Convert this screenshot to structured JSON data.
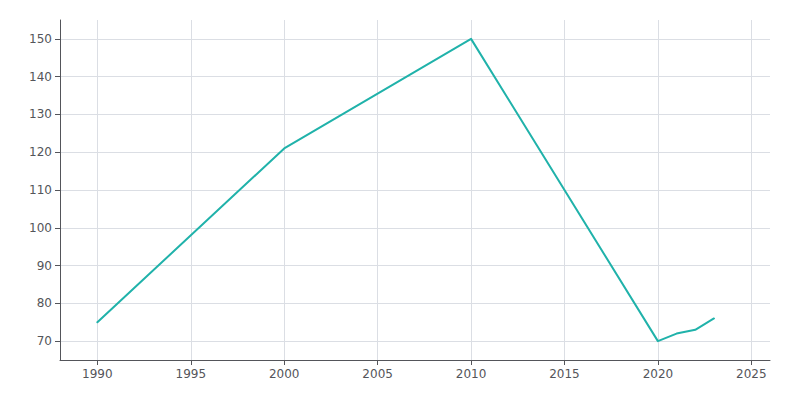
{
  "chart_data": {
    "type": "line",
    "x": [
      1990,
      2000,
      2010,
      2020,
      2021,
      2022,
      2023
    ],
    "values": [
      75,
      121,
      150,
      70,
      72,
      73,
      76
    ],
    "color": "#20b2aa",
    "xlim": [
      1988,
      2026
    ],
    "ylim": [
      65,
      155
    ],
    "xticks": [
      1990,
      1995,
      2000,
      2005,
      2010,
      2015,
      2020,
      2025
    ],
    "yticks": [
      70,
      80,
      90,
      100,
      110,
      120,
      130,
      140,
      150
    ],
    "grid": true
  }
}
